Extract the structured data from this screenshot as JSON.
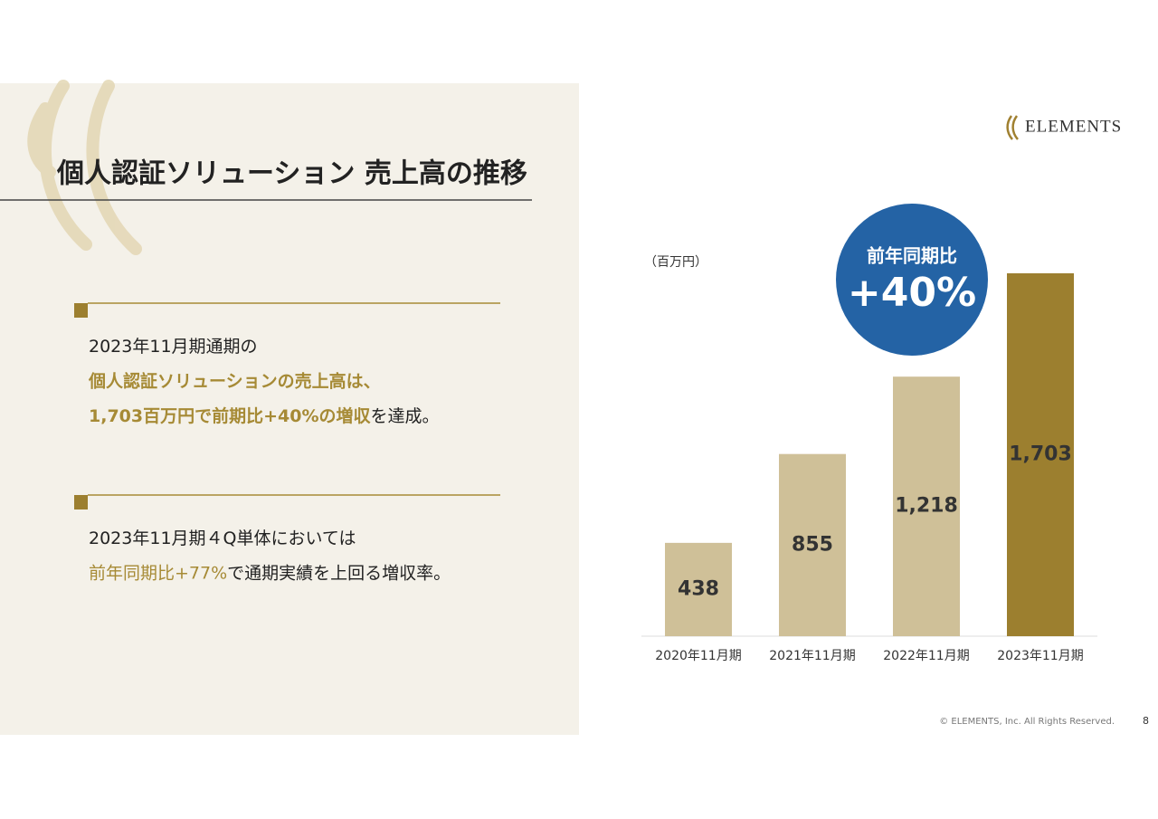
{
  "header": {
    "title": "個人認証ソリューション 売上高の推移",
    "logo": "ELEMENTS"
  },
  "points": [
    {
      "lines": [
        [
          {
            "text": "2023年11月期通期の",
            "style": "normal"
          }
        ],
        [
          {
            "text": "個人認証ソリューションの売上高は、",
            "style": "highlight"
          }
        ],
        [
          {
            "text": "1,703百万円で前期比+40%の増収",
            "style": "highlight"
          },
          {
            "text": "を達成。",
            "style": "normal"
          }
        ]
      ]
    },
    {
      "lines": [
        [
          {
            "text": "2023年11月期４Q単体においては",
            "style": "normal"
          }
        ],
        [
          {
            "text": "前年同期比+77%",
            "style": "accent"
          },
          {
            "text": "で通期実績を上回る増収率。",
            "style": "normal"
          }
        ]
      ]
    }
  ],
  "chart_data": {
    "type": "bar",
    "unit_label": "（百万円）",
    "categories": [
      "2020年11月期",
      "2021年11月期",
      "2022年11月期",
      "2023年11月期"
    ],
    "values": [
      438,
      855,
      1218,
      1703
    ],
    "value_labels": [
      "438",
      "855",
      "1,218",
      "1,703"
    ],
    "colors": [
      "#cfc098",
      "#cfc098",
      "#cfc098",
      "#9c7f2f"
    ],
    "annotation": {
      "title": "前年同期比",
      "value": "+40%"
    }
  },
  "footer": {
    "copyright": "© ELEMENTS, Inc. All Rights Reserved.",
    "page": "8"
  }
}
